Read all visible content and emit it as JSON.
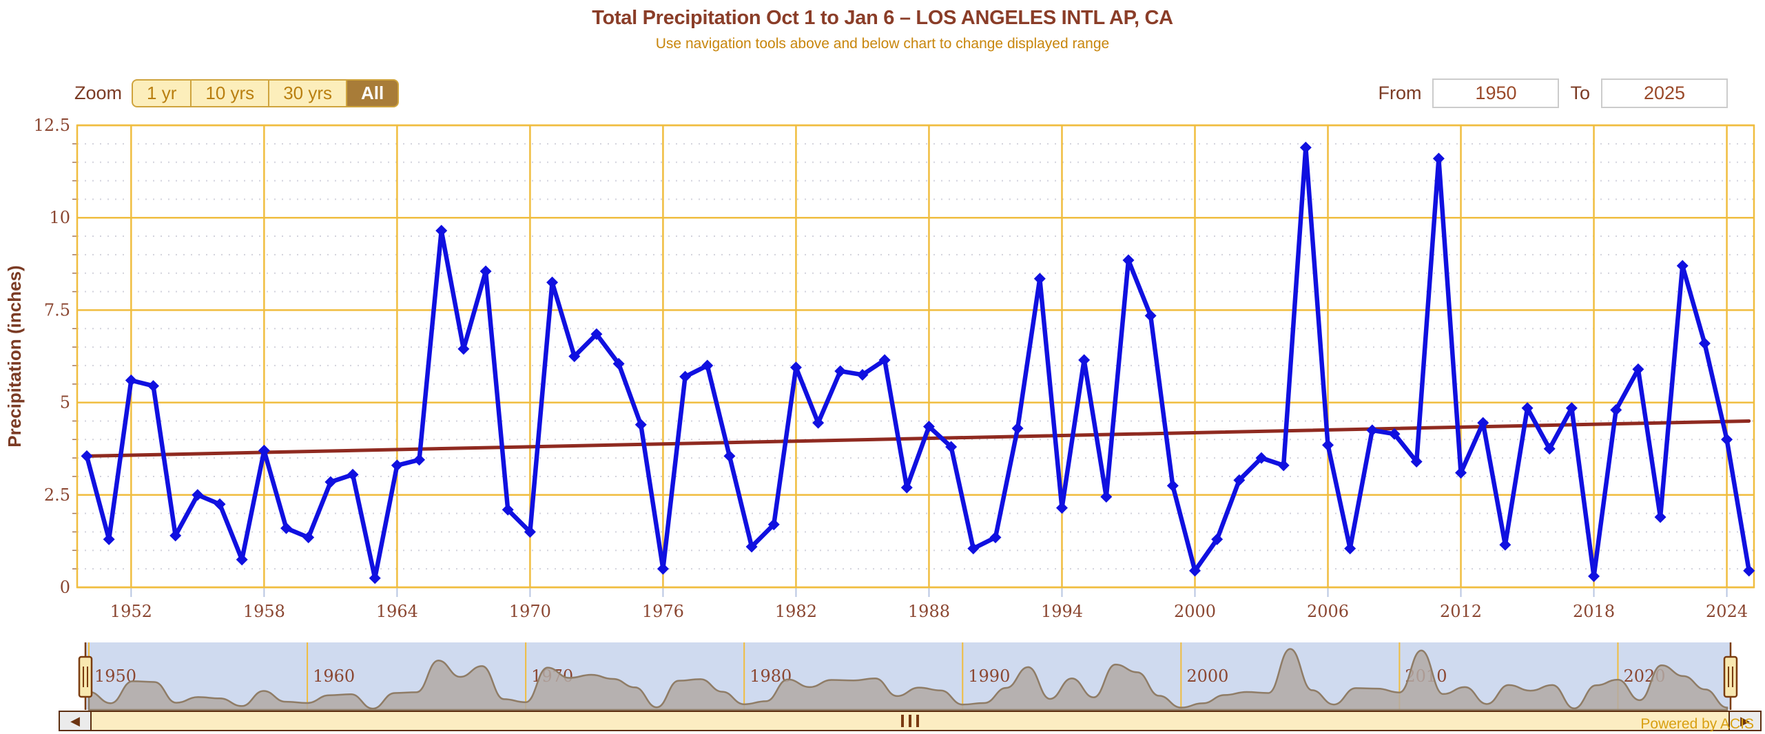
{
  "header": {
    "title": "Total Precipitation Oct 1 to Jan 6 – LOS ANGELES INTL AP, CA",
    "subtitle": "Use navigation tools above and below chart to change displayed range"
  },
  "toolbar": {
    "zoom_label": "Zoom",
    "buttons": [
      {
        "label": "1 yr",
        "selected": false
      },
      {
        "label": "10 yrs",
        "selected": false
      },
      {
        "label": "30 yrs",
        "selected": false
      },
      {
        "label": "All",
        "selected": true
      }
    ],
    "from_label": "From",
    "from_value": "1950",
    "to_label": "To",
    "to_value": "2025"
  },
  "footer": {
    "credit": "Powered by ACIS"
  },
  "chart_data": {
    "type": "line",
    "title": "Total Precipitation Oct 1 to Jan 6 – LOS ANGELES INTL AP, CA",
    "ylabel": "Precipitation (inches)",
    "ylim": [
      0,
      12.5
    ],
    "yticks": [
      0,
      2.5,
      5,
      7.5,
      10,
      12.5
    ],
    "xlim": [
      1950,
      2025
    ],
    "xtick_years": [
      1952,
      1958,
      1964,
      1970,
      1976,
      1982,
      1988,
      1994,
      2000,
      2006,
      2012,
      2018,
      2024
    ],
    "grid": true,
    "x_start_year": 1950,
    "x": [
      1950,
      1951,
      1952,
      1953,
      1954,
      1955,
      1956,
      1957,
      1958,
      1959,
      1960,
      1961,
      1962,
      1963,
      1964,
      1965,
      1966,
      1967,
      1968,
      1969,
      1970,
      1971,
      1972,
      1973,
      1974,
      1975,
      1976,
      1977,
      1978,
      1979,
      1980,
      1981,
      1982,
      1983,
      1984,
      1985,
      1986,
      1987,
      1988,
      1989,
      1990,
      1991,
      1992,
      1993,
      1994,
      1995,
      1996,
      1997,
      1998,
      1999,
      2000,
      2001,
      2002,
      2003,
      2004,
      2005,
      2006,
      2007,
      2008,
      2009,
      2010,
      2011,
      2012,
      2013,
      2014,
      2015,
      2016,
      2017,
      2018,
      2019,
      2020,
      2021,
      2022,
      2023,
      2024,
      2025
    ],
    "series": [
      {
        "name": "Total Precipitation",
        "type": "line",
        "color": "#1010e0",
        "values": [
          3.55,
          1.3,
          5.6,
          5.45,
          1.4,
          2.5,
          2.25,
          0.75,
          3.7,
          1.6,
          1.35,
          2.85,
          3.05,
          0.25,
          3.3,
          3.45,
          9.65,
          6.45,
          8.55,
          2.1,
          1.5,
          8.25,
          6.25,
          6.85,
          6.05,
          4.4,
          0.5,
          5.7,
          6.0,
          3.55,
          1.1,
          1.7,
          5.95,
          4.45,
          5.85,
          5.75,
          6.15,
          2.7,
          4.35,
          3.8,
          1.05,
          1.35,
          4.3,
          8.35,
          2.15,
          6.15,
          2.45,
          8.85,
          7.35,
          2.75,
          0.45,
          1.3,
          2.9,
          3.5,
          3.3,
          11.9,
          3.85,
          1.05,
          4.25,
          4.15,
          3.4,
          11.6,
          3.1,
          4.45,
          1.15,
          4.85,
          3.75,
          4.85,
          0.3,
          4.8,
          5.9,
          1.9,
          8.7,
          6.6,
          4.0,
          0.45
        ]
      },
      {
        "name": "Trend",
        "type": "trend-line",
        "color": "#8f2a20",
        "start_value": 3.55,
        "end_value": 4.5
      }
    ],
    "navigator": {
      "decade_labels": [
        "1950",
        "1960",
        "1970",
        "1980",
        "1990",
        "2000",
        "2010",
        "2020"
      ],
      "decades": [
        1950,
        1960,
        1970,
        1980,
        1990,
        2000,
        2010,
        2020
      ]
    },
    "colors": {
      "grid": "#f0bd3f",
      "minor_dots": "#d2d2dc",
      "axis_text": "#8b4732",
      "axis_title": "#7b3b24",
      "x_tick": "#b9c6e2",
      "nav_bg": "#cfdaef",
      "nav_area_fill": "#b2a9a5",
      "nav_area_stroke": "#8f7c66",
      "nav_border": "#7a3c0f",
      "handle_fill": "#f8e8b0"
    }
  }
}
